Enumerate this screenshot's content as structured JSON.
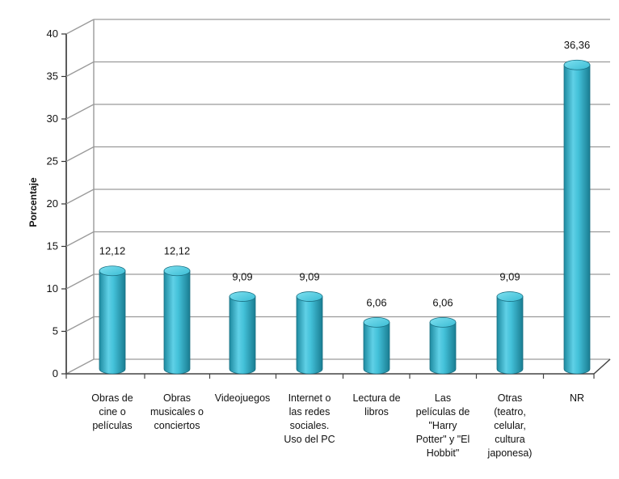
{
  "chart_data": {
    "type": "bar",
    "title": "",
    "xlabel": "",
    "ylabel": "Porcentaje",
    "ylim": [
      0,
      40
    ],
    "yticks": [
      0,
      5,
      10,
      15,
      20,
      25,
      30,
      35,
      40
    ],
    "grid": true,
    "legend": "none",
    "bar_color": "#3bbcd4",
    "categories": [
      [
        "Obras de",
        "cine o",
        "películas"
      ],
      [
        "Obras",
        "musicales o",
        "conciertos"
      ],
      [
        "Videojuegos"
      ],
      [
        "Internet o",
        "las redes",
        "sociales.",
        "Uso del PC"
      ],
      [
        "Lectura de",
        "libros"
      ],
      [
        "Las",
        "películas de",
        "\"Harry",
        "Potter\" y \"El",
        "Hobbit\""
      ],
      [
        "Otras",
        "(teatro,",
        "celular,",
        "cultura",
        "japonesa)"
      ],
      [
        "NR"
      ]
    ],
    "values": [
      12.12,
      12.12,
      9.09,
      9.09,
      6.06,
      6.06,
      9.09,
      36.36
    ],
    "data_labels": [
      "12,12",
      "12,12",
      "9,09",
      "9,09",
      "6,06",
      "6,06",
      "9,09",
      "36,36"
    ]
  }
}
